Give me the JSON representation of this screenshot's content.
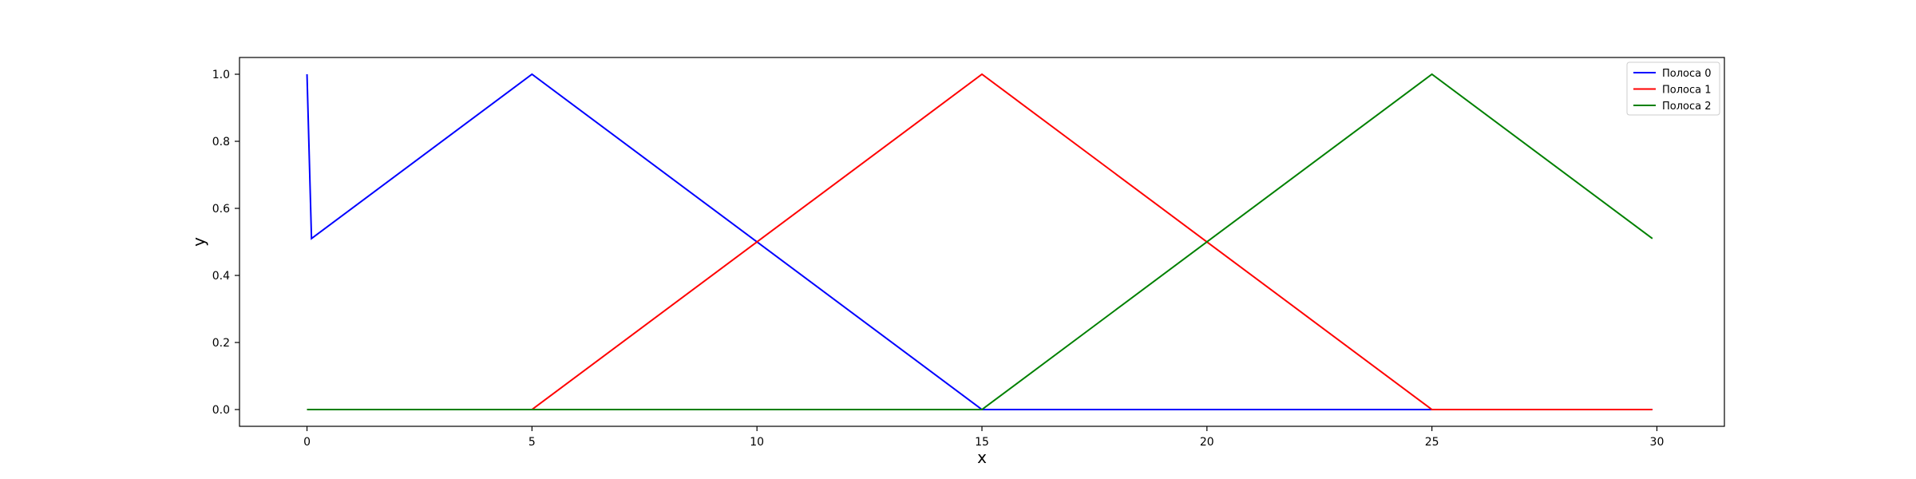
{
  "chart_data": {
    "type": "line",
    "xlabel": "x",
    "ylabel": "y",
    "xlim": [
      -1.5,
      31.5
    ],
    "ylim": [
      -0.05,
      1.05
    ],
    "x_ticks": [
      0,
      5,
      10,
      15,
      20,
      25,
      30
    ],
    "y_ticks": [
      0.0,
      0.2,
      0.4,
      0.6,
      0.8,
      1.0
    ],
    "x_tick_labels": [
      "0",
      "5",
      "10",
      "15",
      "20",
      "25",
      "30"
    ],
    "y_tick_labels": [
      "0.0",
      "0.2",
      "0.4",
      "0.6",
      "0.8",
      "1.0"
    ],
    "grid": false,
    "legend": "top-right",
    "series": [
      {
        "name": "Полоса 0",
        "color": "#0000ff",
        "x": [
          0,
          0.1,
          5,
          15,
          25,
          29.9
        ],
        "y": [
          1.0,
          0.51,
          1.0,
          0.0,
          0.0,
          0.0
        ]
      },
      {
        "name": "Полоса 1",
        "color": "#ff0000",
        "x": [
          0,
          5,
          15,
          25,
          29.9
        ],
        "y": [
          0.0,
          0.0,
          1.0,
          0.0,
          0.0
        ]
      },
      {
        "name": "Полоса 2",
        "color": "#008000",
        "x": [
          0,
          15,
          25,
          29.9
        ],
        "y": [
          0.0,
          0.0,
          1.0,
          0.51
        ]
      }
    ]
  }
}
